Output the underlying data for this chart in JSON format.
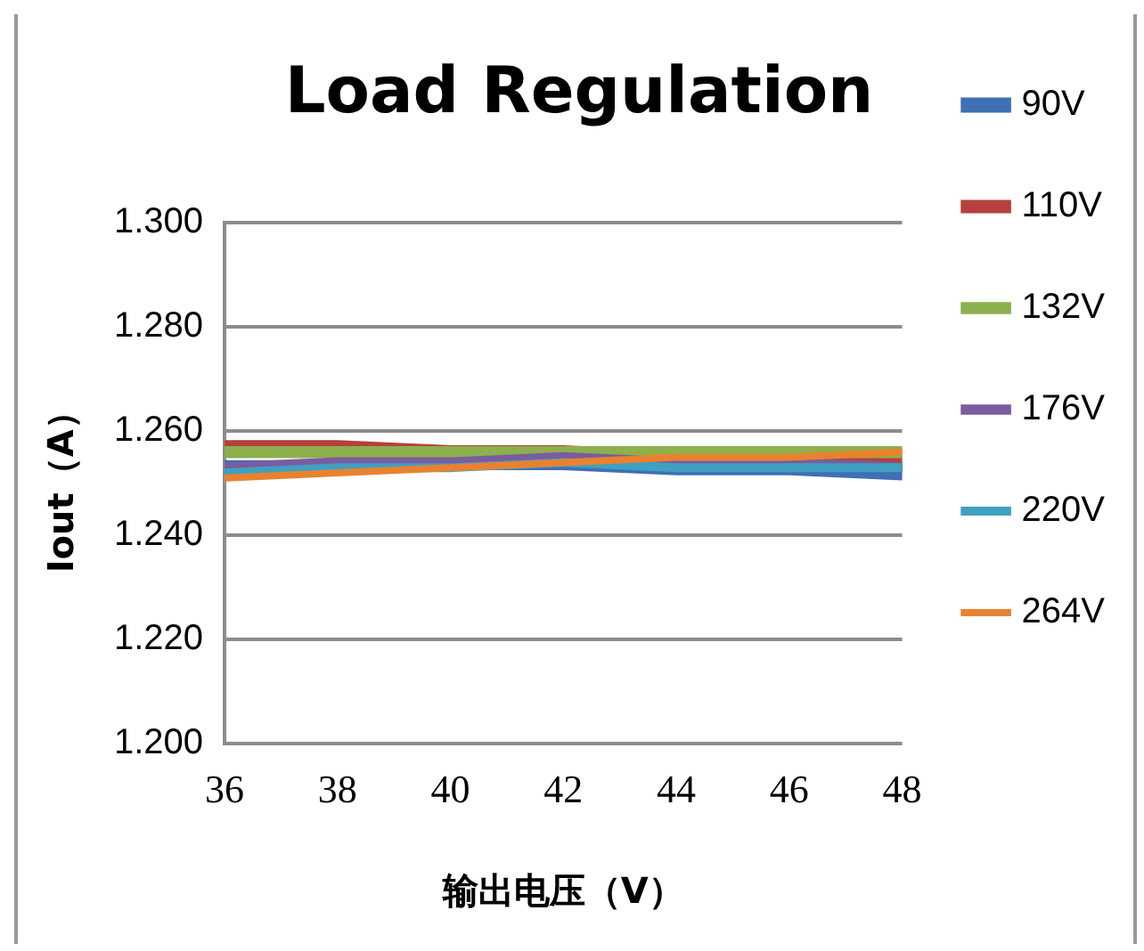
{
  "chart_data": {
    "type": "line",
    "title": "Load Regulation",
    "xlabel": "输出电压（V）",
    "ylabel": "Iout（A）",
    "x": [
      36,
      38,
      40,
      42,
      44,
      46,
      48
    ],
    "xlim": [
      36,
      48
    ],
    "xticks": [
      36,
      38,
      40,
      42,
      44,
      46,
      48
    ],
    "ylim": [
      1.2,
      1.3
    ],
    "yticks": [
      {
        "value": 1.2,
        "label": "1.200"
      },
      {
        "value": 1.22,
        "label": "1.220"
      },
      {
        "value": 1.24,
        "label": "1.240"
      },
      {
        "value": 1.26,
        "label": "1.260"
      },
      {
        "value": 1.28,
        "label": "1.280"
      },
      {
        "value": 1.3,
        "label": "1.300"
      }
    ],
    "grid": "y",
    "legend": "right",
    "marker": "none",
    "line_style": "solid",
    "series": [
      {
        "name": "90V",
        "color": "#3f6fb5",
        "values": [
          1.253,
          1.253,
          1.254,
          1.254,
          1.253,
          1.253,
          1.252
        ]
      },
      {
        "name": "110V",
        "color": "#b5403d",
        "values": [
          1.257,
          1.257,
          1.256,
          1.256,
          1.255,
          1.255,
          1.254
        ]
      },
      {
        "name": "132V",
        "color": "#8db04c",
        "values": [
          1.256,
          1.256,
          1.256,
          1.256,
          1.256,
          1.256,
          1.256
        ]
      },
      {
        "name": "176V",
        "color": "#7a5ca0",
        "values": [
          1.253,
          1.254,
          1.254,
          1.255,
          1.254,
          1.254,
          1.253
        ]
      },
      {
        "name": "220V",
        "color": "#3fa0c0",
        "values": [
          1.252,
          1.253,
          1.253,
          1.254,
          1.253,
          1.253,
          1.253
        ]
      },
      {
        "name": "264V",
        "color": "#e8822f",
        "values": [
          1.251,
          1.252,
          1.253,
          1.254,
          1.255,
          1.255,
          1.256
        ]
      }
    ]
  }
}
